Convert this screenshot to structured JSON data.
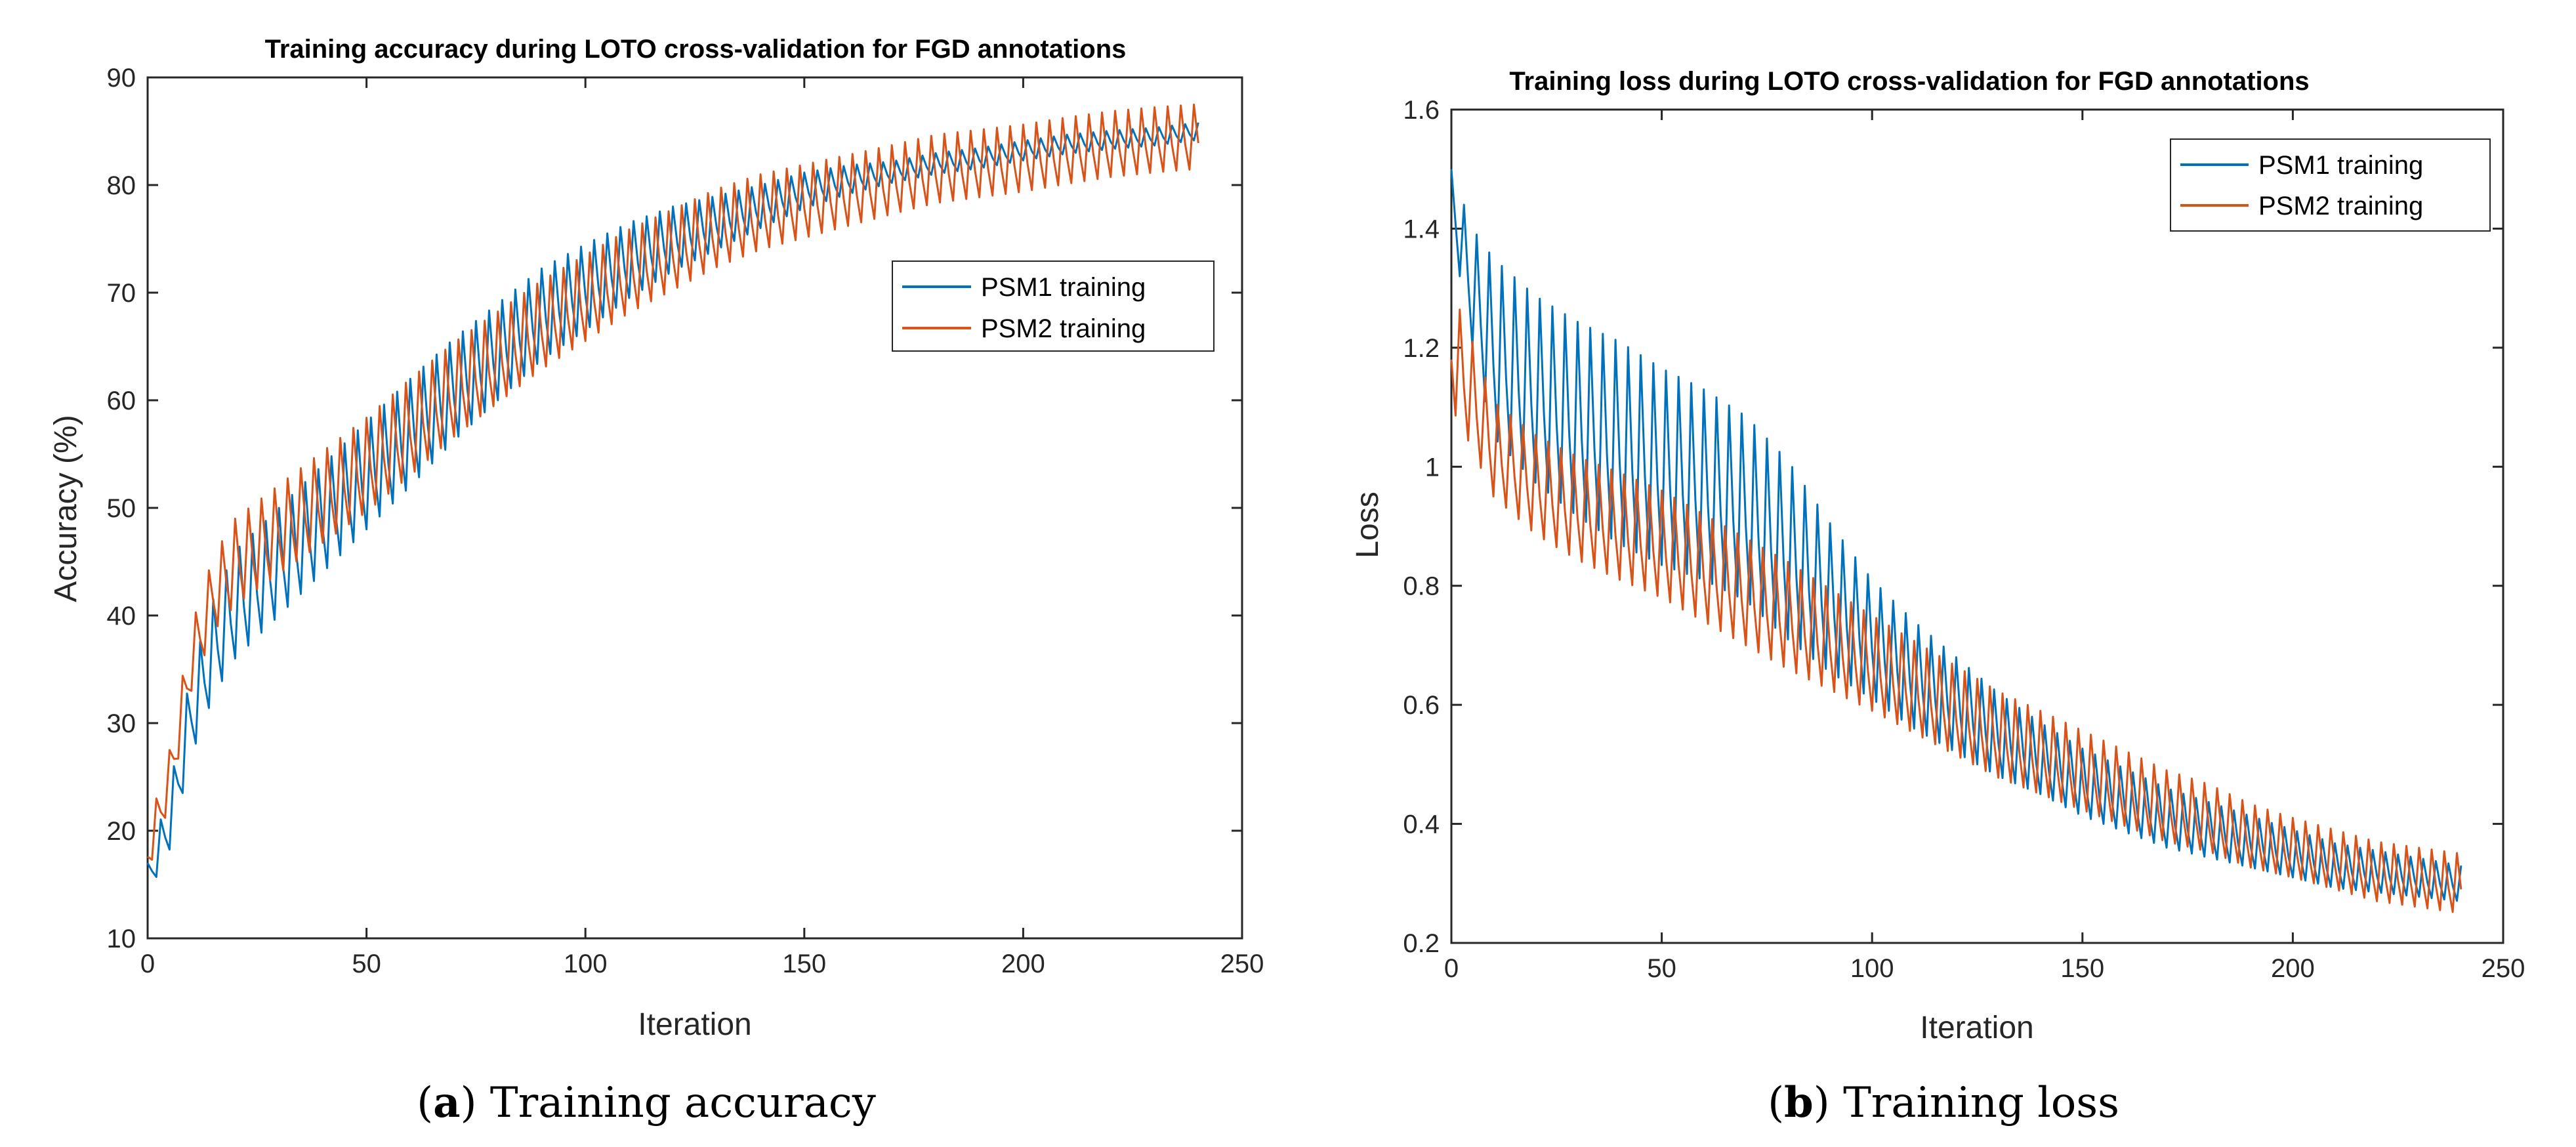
{
  "chart_data": [
    {
      "type": "line",
      "title": "Training accuracy during LOTO cross-validation for FGD annotations",
      "xlabel": "Iteration",
      "ylabel": "Accuracy (%)",
      "xlim": [
        0,
        250
      ],
      "ylim": [
        10,
        90
      ],
      "xticks": [
        0,
        50,
        100,
        150,
        200,
        250
      ],
      "yticks": [
        10,
        20,
        30,
        40,
        50,
        60,
        70,
        80,
        90
      ],
      "legend_position": "right",
      "caption_letter": "a",
      "caption_text": "Training accuracy",
      "series": [
        {
          "name": "PSM1 training",
          "color": "#0072BD",
          "trend": [
            [
              0,
              15.5
            ],
            [
              5,
              21
            ],
            [
              10,
              31
            ],
            [
              15,
              37
            ],
            [
              20,
              41
            ],
            [
              30,
              45
            ],
            [
              40,
              49
            ],
            [
              50,
              53
            ],
            [
              60,
              57
            ],
            [
              70,
              61
            ],
            [
              80,
              64.5
            ],
            [
              90,
              68
            ],
            [
              100,
              70.5
            ],
            [
              110,
              73
            ],
            [
              120,
              75
            ],
            [
              130,
              76.5
            ],
            [
              140,
              78
            ],
            [
              150,
              79.5
            ],
            [
              160,
              80.5
            ],
            [
              170,
              81.2
            ],
            [
              180,
              82
            ],
            [
              190,
              82.5
            ],
            [
              200,
              83.2
            ],
            [
              210,
              83.8
            ],
            [
              220,
              84.2
            ],
            [
              230,
              84.5
            ],
            [
              240,
              85
            ]
          ],
          "amp": [
            [
              0,
              1.5
            ],
            [
              10,
              4
            ],
            [
              20,
              5
            ],
            [
              60,
              5
            ],
            [
              100,
              4
            ],
            [
              140,
              2
            ],
            [
              170,
              1
            ],
            [
              240,
              0.8
            ]
          ]
        },
        {
          "name": "PSM2 training",
          "color": "#D95319",
          "trend": [
            [
              0,
              18
            ],
            [
              5,
              25
            ],
            [
              10,
              36
            ],
            [
              15,
              42
            ],
            [
              20,
              45
            ],
            [
              30,
              48
            ],
            [
              40,
              51
            ],
            [
              50,
              54
            ],
            [
              60,
              57.5
            ],
            [
              70,
              61
            ],
            [
              80,
              64
            ],
            [
              90,
              67
            ],
            [
              100,
              69.5
            ],
            [
              110,
              72
            ],
            [
              120,
              74
            ],
            [
              130,
              76
            ],
            [
              140,
              77.5
            ],
            [
              150,
              78.5
            ],
            [
              160,
              79.5
            ],
            [
              170,
              80.5
            ],
            [
              180,
              81.5
            ],
            [
              190,
              82
            ],
            [
              200,
              82.5
            ],
            [
              210,
              83.2
            ],
            [
              220,
              83.8
            ],
            [
              230,
              84.2
            ],
            [
              240,
              84.5
            ]
          ],
          "amp": [
            [
              0,
              2
            ],
            [
              10,
              3
            ],
            [
              20,
              4
            ],
            [
              60,
              4.5
            ],
            [
              100,
              4
            ],
            [
              140,
              3.5
            ],
            [
              170,
              3.2
            ],
            [
              240,
              3
            ]
          ]
        }
      ]
    },
    {
      "type": "line",
      "title": "Training loss during LOTO cross-validation for FGD annotations",
      "xlabel": "Iteration",
      "ylabel": "Loss",
      "xlim": [
        0,
        250
      ],
      "ylim": [
        0.2,
        1.6
      ],
      "xticks": [
        0,
        50,
        100,
        150,
        200,
        250
      ],
      "yticks": [
        0.2,
        0.4,
        0.6,
        0.8,
        1,
        1.2,
        1.4,
        1.6
      ],
      "legend_position": "top-right",
      "caption_letter": "b",
      "caption_text": "Training loss",
      "series": [
        {
          "name": "PSM1 training",
          "color": "#0072BD",
          "trend": [
            [
              0,
              1.45
            ],
            [
              5,
              1.3
            ],
            [
              10,
              1.2
            ],
            [
              20,
              1.13
            ],
            [
              30,
              1.08
            ],
            [
              40,
              1.04
            ],
            [
              50,
              1.0
            ],
            [
              60,
              0.97
            ],
            [
              70,
              0.93
            ],
            [
              80,
              0.86
            ],
            [
              90,
              0.78
            ],
            [
              100,
              0.71
            ],
            [
              110,
              0.65
            ],
            [
              120,
              0.6
            ],
            [
              130,
              0.55
            ],
            [
              140,
              0.51
            ],
            [
              150,
              0.47
            ],
            [
              160,
              0.44
            ],
            [
              170,
              0.41
            ],
            [
              180,
              0.39
            ],
            [
              190,
              0.37
            ],
            [
              200,
              0.35
            ],
            [
              210,
              0.33
            ],
            [
              220,
              0.32
            ],
            [
              230,
              0.31
            ],
            [
              240,
              0.3
            ]
          ],
          "amp": [
            [
              0,
              0.05
            ],
            [
              10,
              0.15
            ],
            [
              40,
              0.17
            ],
            [
              80,
              0.15
            ],
            [
              100,
              0.1
            ],
            [
              140,
              0.06
            ],
            [
              200,
              0.04
            ],
            [
              240,
              0.03
            ]
          ]
        },
        {
          "name": "PSM2 training",
          "color": "#D95319",
          "trend": [
            [
              0,
              1.2
            ],
            [
              5,
              1.12
            ],
            [
              10,
              1.03
            ],
            [
              20,
              0.97
            ],
            [
              30,
              0.93
            ],
            [
              40,
              0.9
            ],
            [
              50,
              0.87
            ],
            [
              60,
              0.83
            ],
            [
              70,
              0.79
            ],
            [
              80,
              0.75
            ],
            [
              90,
              0.71
            ],
            [
              100,
              0.67
            ],
            [
              110,
              0.63
            ],
            [
              120,
              0.59
            ],
            [
              130,
              0.55
            ],
            [
              140,
              0.52
            ],
            [
              150,
              0.49
            ],
            [
              160,
              0.46
            ],
            [
              170,
              0.43
            ],
            [
              180,
              0.41
            ],
            [
              190,
              0.38
            ],
            [
              200,
              0.36
            ],
            [
              210,
              0.34
            ],
            [
              220,
              0.32
            ],
            [
              230,
              0.31
            ],
            [
              240,
              0.3
            ]
          ],
          "amp": [
            [
              0,
              0.1
            ],
            [
              10,
              0.08
            ],
            [
              40,
              0.09
            ],
            [
              80,
              0.09
            ],
            [
              100,
              0.08
            ],
            [
              140,
              0.07
            ],
            [
              200,
              0.05
            ],
            [
              240,
              0.05
            ]
          ]
        }
      ]
    }
  ]
}
